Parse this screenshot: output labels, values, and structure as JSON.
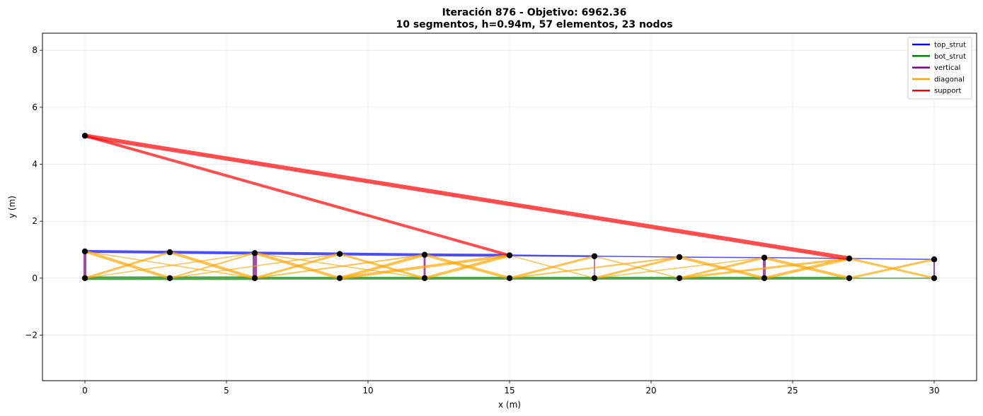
{
  "chart_data": {
    "type": "line",
    "title_line1": "Iteración 876 - Objetivo: 6962.36",
    "title_line2": "10 segmentos, h=0.94m, 57 elementos, 23 nodos",
    "xlabel": "x (m)",
    "ylabel": "y (m)",
    "xlim": [
      -1.5,
      31.5
    ],
    "ylim": [
      -3.6,
      8.6
    ],
    "xticks": [
      0,
      5,
      10,
      15,
      20,
      25,
      30
    ],
    "yticks": [
      -2,
      0,
      2,
      4,
      6,
      8
    ],
    "xtick_labels": [
      "0",
      "5",
      "10",
      "15",
      "20",
      "25",
      "30"
    ],
    "ytick_labels": [
      "−2",
      "0",
      "2",
      "4",
      "6",
      "8"
    ],
    "grid": true,
    "legend_position": "top-right",
    "legend": [
      {
        "label": "top_strut",
        "color": "#0000ff"
      },
      {
        "label": "bot_strut",
        "color": "#008000"
      },
      {
        "label": "vertical",
        "color": "#800080"
      },
      {
        "label": "diagonal",
        "color": "#ffa500"
      },
      {
        "label": "support",
        "color": "#ff0000"
      }
    ],
    "nodes": [
      [
        0,
        0
      ],
      [
        3,
        0
      ],
      [
        6,
        0
      ],
      [
        9,
        0
      ],
      [
        12,
        0
      ],
      [
        15,
        0
      ],
      [
        18,
        0
      ],
      [
        21,
        0
      ],
      [
        24,
        0
      ],
      [
        27,
        0
      ],
      [
        30,
        0
      ],
      [
        0,
        0.94
      ],
      [
        3,
        0.91
      ],
      [
        6,
        0.88
      ],
      [
        9,
        0.85
      ],
      [
        12,
        0.82
      ],
      [
        15,
        0.8
      ],
      [
        18,
        0.77
      ],
      [
        21,
        0.74
      ],
      [
        24,
        0.72
      ],
      [
        27,
        0.69
      ],
      [
        30,
        0.66
      ],
      [
        0,
        5.0
      ]
    ],
    "members": [
      {
        "t": "bot_strut",
        "n": [
          0,
          1
        ],
        "w": 5
      },
      {
        "t": "bot_strut",
        "n": [
          1,
          2
        ],
        "w": 5
      },
      {
        "t": "bot_strut",
        "n": [
          2,
          3
        ],
        "w": 4
      },
      {
        "t": "bot_strut",
        "n": [
          3,
          4
        ],
        "w": 4
      },
      {
        "t": "bot_strut",
        "n": [
          4,
          5
        ],
        "w": 4
      },
      {
        "t": "bot_strut",
        "n": [
          5,
          6
        ],
        "w": 4
      },
      {
        "t": "bot_strut",
        "n": [
          6,
          7
        ],
        "w": 4
      },
      {
        "t": "bot_strut",
        "n": [
          7,
          8
        ],
        "w": 4
      },
      {
        "t": "bot_strut",
        "n": [
          8,
          9
        ],
        "w": 4
      },
      {
        "t": "bot_strut",
        "n": [
          9,
          10
        ],
        "w": 1.5
      },
      {
        "t": "top_strut",
        "n": [
          11,
          12
        ],
        "w": 4
      },
      {
        "t": "top_strut",
        "n": [
          12,
          13
        ],
        "w": 4
      },
      {
        "t": "top_strut",
        "n": [
          13,
          14
        ],
        "w": 4
      },
      {
        "t": "top_strut",
        "n": [
          14,
          15
        ],
        "w": 4
      },
      {
        "t": "top_strut",
        "n": [
          15,
          16
        ],
        "w": 4
      },
      {
        "t": "top_strut",
        "n": [
          16,
          17
        ],
        "w": 2.5
      },
      {
        "t": "top_strut",
        "n": [
          17,
          18
        ],
        "w": 1.5
      },
      {
        "t": "top_strut",
        "n": [
          18,
          19
        ],
        "w": 1.5
      },
      {
        "t": "top_strut",
        "n": [
          19,
          20
        ],
        "w": 1.5
      },
      {
        "t": "top_strut",
        "n": [
          20,
          21
        ],
        "w": 1.5
      },
      {
        "t": "vertical",
        "n": [
          0,
          11
        ],
        "w": 4
      },
      {
        "t": "vertical",
        "n": [
          2,
          13
        ],
        "w": 6
      },
      {
        "t": "vertical",
        "n": [
          4,
          15
        ],
        "w": 3
      },
      {
        "t": "vertical",
        "n": [
          6,
          17
        ],
        "w": 1.5
      },
      {
        "t": "vertical",
        "n": [
          8,
          19
        ],
        "w": 4
      },
      {
        "t": "vertical",
        "n": [
          10,
          21
        ],
        "w": 2
      },
      {
        "t": "diagonal",
        "n": [
          11,
          1
        ],
        "w": 4
      },
      {
        "t": "diagonal",
        "n": [
          11,
          2
        ],
        "w": 1.5
      },
      {
        "t": "diagonal",
        "n": [
          0,
          12
        ],
        "w": 3
      },
      {
        "t": "diagonal",
        "n": [
          12,
          2
        ],
        "w": 4
      },
      {
        "t": "diagonal",
        "n": [
          1,
          13
        ],
        "w": 2
      },
      {
        "t": "diagonal",
        "n": [
          0,
          13
        ],
        "w": 1.5
      },
      {
        "t": "diagonal",
        "n": [
          13,
          3
        ],
        "w": 4
      },
      {
        "t": "diagonal",
        "n": [
          1,
          14
        ],
        "w": 1.5
      },
      {
        "t": "diagonal",
        "n": [
          13,
          4
        ],
        "w": 1.5
      },
      {
        "t": "diagonal",
        "n": [
          2,
          14
        ],
        "w": 3
      },
      {
        "t": "diagonal",
        "n": [
          14,
          4
        ],
        "w": 3
      },
      {
        "t": "diagonal",
        "n": [
          3,
          15
        ],
        "w": 4
      },
      {
        "t": "diagonal",
        "n": [
          2,
          15
        ],
        "w": 2
      },
      {
        "t": "diagonal",
        "n": [
          15,
          5
        ],
        "w": 4
      },
      {
        "t": "diagonal",
        "n": [
          3,
          16
        ],
        "w": 4
      },
      {
        "t": "diagonal",
        "n": [
          4,
          16
        ],
        "w": 4
      },
      {
        "t": "diagonal",
        "n": [
          16,
          6
        ],
        "w": 1.5
      },
      {
        "t": "diagonal",
        "n": [
          5,
          17
        ],
        "w": 3
      },
      {
        "t": "diagonal",
        "n": [
          17,
          7
        ],
        "w": 1.5
      },
      {
        "t": "diagonal",
        "n": [
          6,
          18
        ],
        "w": 3
      },
      {
        "t": "diagonal",
        "n": [
          5,
          18
        ],
        "w": 2
      },
      {
        "t": "diagonal",
        "n": [
          18,
          8
        ],
        "w": 4
      },
      {
        "t": "diagonal",
        "n": [
          7,
          19
        ],
        "w": 3
      },
      {
        "t": "diagonal",
        "n": [
          6,
          19
        ],
        "w": 1.5
      },
      {
        "t": "diagonal",
        "n": [
          19,
          9
        ],
        "w": 4
      },
      {
        "t": "diagonal",
        "n": [
          7,
          20
        ],
        "w": 3
      },
      {
        "t": "diagonal",
        "n": [
          8,
          20
        ],
        "w": 4
      },
      {
        "t": "diagonal",
        "n": [
          20,
          10
        ],
        "w": 3
      },
      {
        "t": "diagonal",
        "n": [
          9,
          21
        ],
        "w": 3
      },
      {
        "t": "support",
        "n": [
          22,
          16
        ],
        "w": 4
      },
      {
        "t": "support",
        "n": [
          22,
          20
        ],
        "w": 6
      }
    ]
  }
}
